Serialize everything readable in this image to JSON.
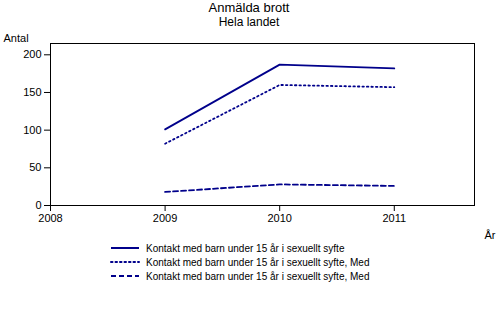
{
  "chart_data": {
    "type": "line",
    "title": "Anmälda brott",
    "subtitle": "Hela landet",
    "xlabel": "År",
    "ylabel": "Antal",
    "x": [
      2009,
      2010,
      2011
    ],
    "series": [
      {
        "name": "Kontakt med barn under 15 år i sexuellt syfte",
        "color": "#00008B",
        "line_style": "solid",
        "values": [
          101,
          187,
          182
        ]
      },
      {
        "name": "Kontakt med barn under 15 år i sexuellt syfte, Med",
        "color": "#00008B",
        "line_style": "dotted",
        "values": [
          82,
          160,
          157
        ]
      },
      {
        "name": "Kontakt med barn under 15 år i sexuellt syfte, Med",
        "color": "#00008B",
        "line_style": "dashed",
        "values": [
          18,
          28,
          26
        ]
      }
    ],
    "xlim": [
      2008,
      2011.7
    ],
    "ylim": [
      0,
      215
    ],
    "xticks": [
      2008,
      2009,
      2010,
      2011
    ],
    "yticks": [
      0,
      50,
      100,
      150,
      200
    ],
    "grid": false,
    "legend": "bottom"
  }
}
